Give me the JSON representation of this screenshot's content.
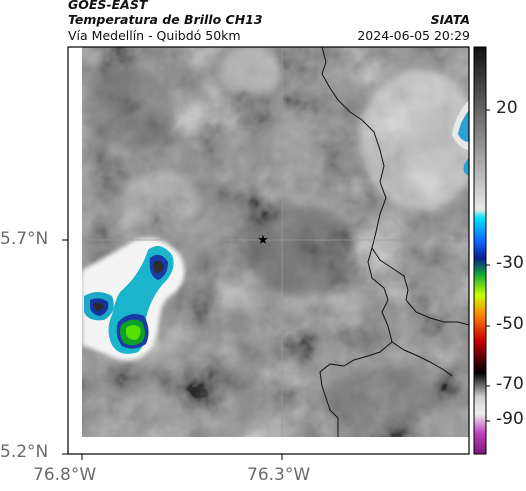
{
  "header": {
    "satellite": "GOES-EAST",
    "product": "Temperatura de Brillo CH13",
    "region": "Vía Medellín - Quibdó 50km",
    "org": "SIATA",
    "datetime": "2024-06-05 20:29"
  },
  "map": {
    "lon_ticks": [
      "76.8°W",
      "76.3°W"
    ],
    "lat_ticks": [
      "5.7°N",
      "5.2°N"
    ],
    "marker": "star"
  },
  "colorbar": {
    "labels": [
      "20",
      "-30",
      "-50",
      "-70",
      "-90"
    ]
  },
  "colors": {
    "frame": "#000000",
    "tick_text": "#6b6b6b"
  }
}
